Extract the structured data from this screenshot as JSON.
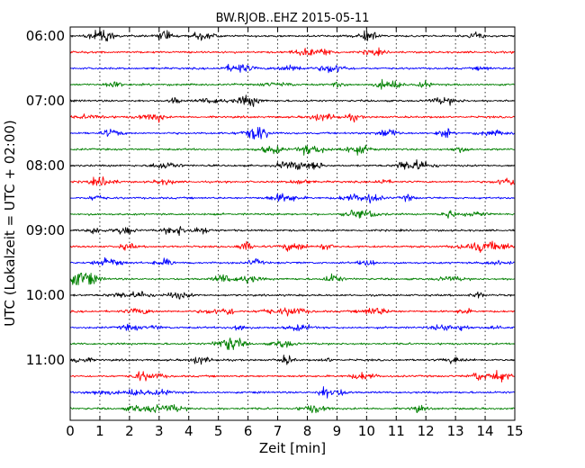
{
  "chart_data": {
    "type": "line",
    "title": "BW.RJOB..EHZ 2015-05-11",
    "xlabel": "Zeit  [min]",
    "ylabel": "UTC (Lokalzeit = UTC + 02:00)",
    "xlim": [
      0,
      15
    ],
    "x_ticks": [
      "0",
      "1",
      "2",
      "3",
      "4",
      "5",
      "6",
      "7",
      "8",
      "9",
      "10",
      "11",
      "12",
      "13",
      "14",
      "15"
    ],
    "y_tick_labels": [
      "06:00",
      "07:00",
      "08:00",
      "09:00",
      "10:00",
      "11:00"
    ],
    "grid": "vertical dotted at each minute",
    "trace_colors": [
      "#000000",
      "#ff0000",
      "#0000ff",
      "#008000"
    ],
    "traces": [
      {
        "start": "06:00"
      },
      {
        "start": "06:15"
      },
      {
        "start": "06:30"
      },
      {
        "start": "06:45"
      },
      {
        "start": "07:00"
      },
      {
        "start": "07:15"
      },
      {
        "start": "07:30"
      },
      {
        "start": "07:45"
      },
      {
        "start": "08:00"
      },
      {
        "start": "08:15"
      },
      {
        "start": "08:30"
      },
      {
        "start": "08:45"
      },
      {
        "start": "09:00"
      },
      {
        "start": "09:15"
      },
      {
        "start": "09:30"
      },
      {
        "start": "09:45"
      },
      {
        "start": "10:00"
      },
      {
        "start": "10:15"
      },
      {
        "start": "10:30"
      },
      {
        "start": "10:45"
      },
      {
        "start": "11:00"
      },
      {
        "start": "11:15"
      },
      {
        "start": "11:30"
      },
      {
        "start": "11:45"
      }
    ]
  }
}
